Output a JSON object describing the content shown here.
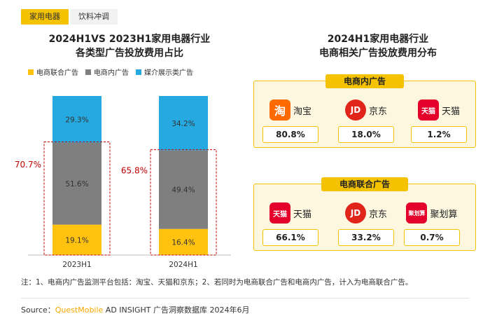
{
  "tabs": [
    {
      "label": "家用电器",
      "active": true
    },
    {
      "label": "饮料冲调",
      "active": false
    }
  ],
  "left_title_line1": "2024H1VS 2023H1家用电器行业",
  "left_title_line2": "各类型广告投放费用占比",
  "right_title_line1": "2024H1家用电器行业",
  "right_title_line2": "电商相关广告投放费用分布",
  "colors": {
    "accent": "#f5c200",
    "ecom_union": "#ffc20e",
    "ecom_internal": "#7f7f7f",
    "media": "#25a9e0",
    "highlight_text": "#c00000"
  },
  "chart_data": {
    "type": "bar",
    "stacked": true,
    "categories": [
      "2023H1",
      "2024H1"
    ],
    "series": [
      {
        "name": "电商联合广告",
        "values": [
          19.1,
          16.4
        ]
      },
      {
        "name": "电商内广告",
        "values": [
          51.6,
          49.4
        ]
      },
      {
        "name": "媒介展示类广告",
        "values": [
          29.3,
          34.2
        ]
      }
    ],
    "value_labels": [
      [
        "19.1%",
        "51.6%",
        "29.3%"
      ],
      [
        "16.4%",
        "49.4%",
        "34.2%"
      ]
    ],
    "bracket_labels": [
      "70.7%",
      "65.8%"
    ],
    "ylim": [
      0,
      100
    ],
    "legend_position": "top-left",
    "grid": false
  },
  "panels": [
    {
      "title": "电商内广告",
      "items": [
        {
          "logo_text": "淘",
          "name": "淘宝",
          "value": "80.8%"
        },
        {
          "logo_text": "JD",
          "name": "京东",
          "value": "18.0%"
        },
        {
          "logo_text": "天猫",
          "name": "天猫",
          "value": "1.2%"
        }
      ]
    },
    {
      "title": "电商联合广告",
      "items": [
        {
          "logo_text": "天猫",
          "name": "天猫",
          "value": "66.1%"
        },
        {
          "logo_text": "JD",
          "name": "京东",
          "value": "33.2%"
        },
        {
          "logo_text": "聚划算",
          "name": "聚划算",
          "value": "0.7%"
        }
      ]
    }
  ],
  "note": "注：1、电商内广告监测平台包括：淘宝、天猫和京东；2、若同时为电商联合广告和电商内广告，计入为电商联合广告。",
  "source": {
    "prefix": "Source：",
    "brand": "QuestMobile",
    "rest": " AD INSIGHT 广告洞察数据库 2024年6月"
  }
}
